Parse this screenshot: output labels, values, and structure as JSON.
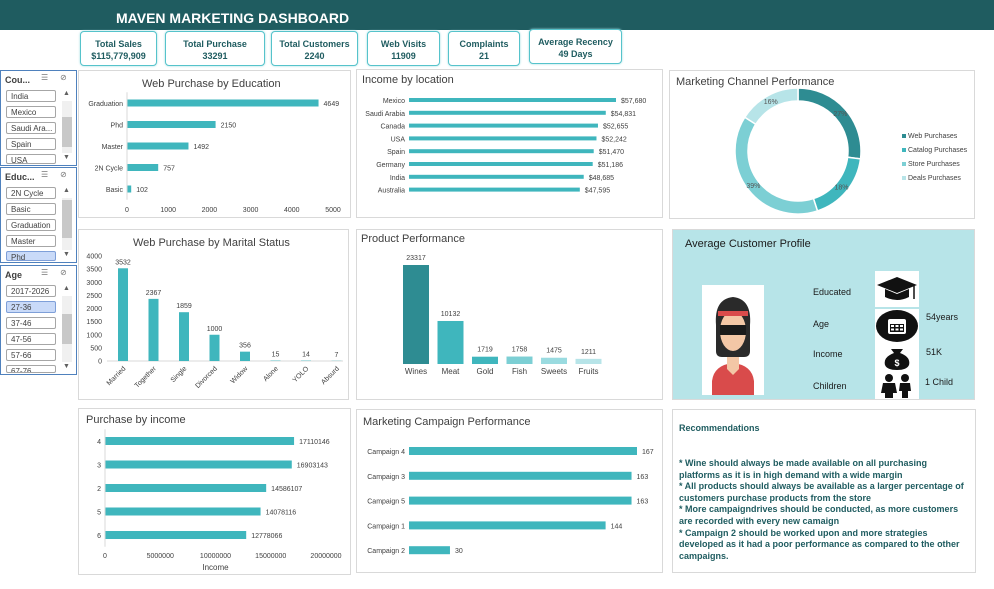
{
  "header": {
    "title": "MAVEN MARKETING DASHBOARD"
  },
  "kpis": [
    {
      "label": "Total Sales",
      "value": "$115,779,909"
    },
    {
      "label": "Total Purchase",
      "value": "33291"
    },
    {
      "label": "Total Customers",
      "value": "2240"
    },
    {
      "label": "Web Visits",
      "value": "11909"
    },
    {
      "label": "Complaints",
      "value": "21"
    },
    {
      "label": "Average Recency",
      "value": "49 Days"
    }
  ],
  "slicers": {
    "country": {
      "title": "Cou...",
      "items": [
        "India",
        "Mexico",
        "Saudi Ara...",
        "Spain",
        "USA"
      ]
    },
    "education": {
      "title": "Educ...",
      "items": [
        "2N Cycle",
        "Basic",
        "Graduation",
        "Master",
        "Phd"
      ],
      "selected": "Phd"
    },
    "age": {
      "title": "Age",
      "items": [
        "2017-2026",
        "27-36",
        "37-46",
        "47-56",
        "57-66",
        "67-76"
      ],
      "selected": "27-36"
    }
  },
  "colors": {
    "teal": "#3fb6bd",
    "header": "#1f5c60",
    "dark_teal": "#2e8c92",
    "light_teal": "#7ccfd4",
    "pale_teal": "#b7e4e8"
  },
  "panels": {
    "web_education": "Web Purchase by Education",
    "income_location": "Income by location",
    "channel": "Marketing Channel Performance",
    "marital": "Web Purchase by Marital Status",
    "product": "Product Performance",
    "profile": "Average Customer Profile",
    "income_purchase": "Purchase by income",
    "campaign": "Marketing Campaign Performance"
  },
  "chart_data": [
    {
      "type": "bar",
      "orientation": "horizontal",
      "title": "Web Purchase by Education",
      "categories": [
        "Graduation",
        "Phd",
        "Master",
        "2N Cycle",
        "Basic"
      ],
      "values": [
        4649,
        2150,
        1492,
        757,
        102
      ],
      "xlim": [
        0,
        5000
      ],
      "xticks": [
        0,
        1000,
        2000,
        3000,
        4000,
        5000
      ]
    },
    {
      "type": "bar",
      "orientation": "horizontal",
      "title": "Income by location",
      "categories": [
        "Mexico",
        "Saudi Arabia",
        "Canada",
        "USA",
        "Spain",
        "Germany",
        "India",
        "Australia"
      ],
      "values": [
        57680,
        54831,
        52655,
        52242,
        51470,
        51186,
        48685,
        47595
      ],
      "labels": [
        "$57,680",
        "$54,831",
        "$52,655",
        "$52,242",
        "$51,470",
        "$51,186",
        "$48,685",
        "$47,595"
      ]
    },
    {
      "type": "pie",
      "variant": "donut",
      "title": "Marketing Channel Performance",
      "categories": [
        "Web Purchases",
        "Catalog Purchases",
        "Store Purchases",
        "Deals Purchases"
      ],
      "values": [
        27,
        18,
        39,
        16
      ],
      "labels": [
        "27%",
        "18%",
        "39%",
        "16%"
      ],
      "colors": [
        "#2e8c92",
        "#3fb6bd",
        "#7ccfd4",
        "#b7e4e8"
      ],
      "legend": "right"
    },
    {
      "type": "bar",
      "orientation": "vertical",
      "title": "Web Purchase by Marital Status",
      "categories": [
        "Married",
        "Together",
        "Single",
        "Divorced",
        "Widow",
        "Alone",
        "YOLO",
        "Absurd"
      ],
      "values": [
        3532,
        2367,
        1859,
        1000,
        356,
        15,
        14,
        7
      ],
      "ylim": [
        0,
        4000
      ],
      "yticks": [
        0,
        500,
        1000,
        1500,
        2000,
        2500,
        3000,
        3500,
        4000
      ]
    },
    {
      "type": "bar",
      "orientation": "vertical",
      "title": "Product Performance",
      "categories": [
        "Wines",
        "Meat",
        "Gold",
        "Fish",
        "Sweets",
        "Fruits"
      ],
      "values": [
        23317,
        10132,
        1719,
        1758,
        1475,
        1211
      ],
      "colors": [
        "#2e8c92",
        "#3fb6bd",
        "#3fb6bd",
        "#7ccfd4",
        "#9adbe0",
        "#b7e4e8"
      ]
    },
    {
      "type": "bar",
      "orientation": "horizontal",
      "title": "Purchase by income",
      "categories": [
        "4",
        "3",
        "2",
        "5",
        "6"
      ],
      "values": [
        17110146,
        16903143,
        14586107,
        14078116,
        12778066
      ],
      "xlim": [
        0,
        20000000
      ],
      "xticks": [
        0,
        5000000,
        10000000,
        15000000,
        20000000
      ],
      "xlabel": "Income"
    },
    {
      "type": "bar",
      "orientation": "horizontal",
      "title": "Marketing Campaign Performance",
      "categories": [
        "Campaign 4",
        "Campaign 3",
        "Campaign 5",
        "Campaign 1",
        "Campaign 2"
      ],
      "values": [
        167,
        163,
        163,
        144,
        30
      ]
    }
  ],
  "profile": {
    "rows": [
      {
        "label": "Educated",
        "icon": "graduation-cap-icon",
        "value": ""
      },
      {
        "label": "Age",
        "icon": "calendar-icon",
        "value": "54years"
      },
      {
        "label": "Income",
        "icon": "money-bag-icon",
        "value": "51K"
      },
      {
        "label": "Children",
        "icon": "children-icon",
        "value": "1 Child"
      }
    ]
  },
  "recommendations": {
    "title": "Recommendations",
    "lines": [
      "* Wine should always be made available on all purchasing platforms as it is in high demand with a wide margin",
      "* All products should always be available as a larger percentage of customers purchase products from the store",
      "* More campaigndrives should be conducted, as more customers are recorded with every new camaign",
      "* Campaign 2 should be worked upon and more strategies developed as it had a poor performance as compared to the other campaigns."
    ]
  }
}
